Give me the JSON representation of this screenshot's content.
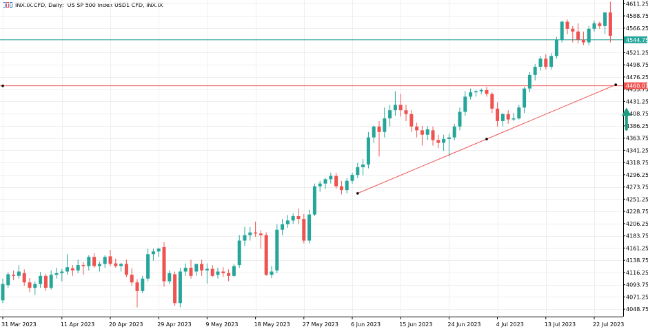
{
  "header": {
    "symbol": "INX.IX.CFD, Daily:",
    "description": "US SP 500 Index USD1 CFD, INX.IX"
  },
  "colors": {
    "bull": "#26a69a",
    "bear": "#ef5350",
    "grid": "#eeeeee",
    "axis": "#000000",
    "level_teal": "#26a69a",
    "level_red": "#ef5350",
    "trendline": "#ef5350",
    "arrow": "#1e9e80"
  },
  "chart_data": {
    "type": "candlestick",
    "timeframe": "Daily",
    "ylim": [
      4035,
      4618
    ],
    "y_ticks": [
      "4611.25",
      "4588.75",
      "4566.25",
      "4544.75",
      "4521.25",
      "4498.75",
      "4476.25",
      "4453.75",
      "4431.25",
      "4408.75",
      "4386.25",
      "4363.75",
      "4341.25",
      "4318.75",
      "4296.25",
      "4273.75",
      "4251.25",
      "4228.75",
      "4206.25",
      "4183.75",
      "4161.25",
      "4138.75",
      "4116.25",
      "4093.75",
      "4071.25",
      "4048.75"
    ],
    "x_ticks": [
      "31 Mar 2023",
      "11 Apr 2023",
      "20 Apr 2023",
      "29 Apr 2023",
      "9 May 2023",
      "18 May 2023",
      "27 May 2023",
      "6 Jun 2023",
      "15 Jun 2023",
      "24 Jun 2023",
      "4 Jul 2023",
      "13 Jul 2023",
      "22 Jul 2023"
    ],
    "x_tick_bar_index": [
      0,
      11,
      20,
      29,
      38,
      47,
      56,
      65,
      74,
      83,
      92,
      101,
      110
    ],
    "candles": [
      [
        4065,
        4105,
        4060,
        4095
      ],
      [
        4093,
        4117,
        4088,
        4113
      ],
      [
        4112,
        4120,
        4102,
        4110
      ],
      [
        4110,
        4130,
        4105,
        4118
      ],
      [
        4115,
        4122,
        4092,
        4098
      ],
      [
        4098,
        4106,
        4080,
        4088
      ],
      [
        4088,
        4100,
        4075,
        4095
      ],
      [
        4095,
        4117,
        4088,
        4110
      ],
      [
        4110,
        4114,
        4082,
        4088
      ],
      [
        4088,
        4120,
        4085,
        4112
      ],
      [
        4112,
        4125,
        4105,
        4115
      ],
      [
        4115,
        4123,
        4100,
        4118
      ],
      [
        4118,
        4150,
        4112,
        4126
      ],
      [
        4124,
        4130,
        4110,
        4120
      ],
      [
        4120,
        4140,
        4115,
        4130
      ],
      [
        4130,
        4135,
        4112,
        4128
      ],
      [
        4128,
        4148,
        4120,
        4145
      ],
      [
        4145,
        4152,
        4125,
        4128
      ],
      [
        4128,
        4136,
        4118,
        4132
      ],
      [
        4132,
        4148,
        4125,
        4145
      ],
      [
        4146,
        4158,
        4128,
        4132
      ],
      [
        4133,
        4142,
        4125,
        4128
      ],
      [
        4128,
        4134,
        4118,
        4132
      ],
      [
        4132,
        4140,
        4108,
        4112
      ],
      [
        4112,
        4124,
        4092,
        4098
      ],
      [
        4098,
        4104,
        4052,
        4082
      ],
      [
        4082,
        4110,
        4078,
        4105
      ],
      [
        4105,
        4160,
        4100,
        4150
      ],
      [
        4150,
        4160,
        4138,
        4155
      ],
      [
        4155,
        4162,
        4145,
        4160
      ],
      [
        4163,
        4172,
        4090,
        4100
      ],
      [
        4100,
        4120,
        4095,
        4115
      ],
      [
        4113,
        4118,
        4055,
        4060
      ],
      [
        4060,
        4125,
        4052,
        4118
      ],
      [
        4118,
        4133,
        4110,
        4125
      ],
      [
        4125,
        4140,
        4105,
        4110
      ],
      [
        4118,
        4130,
        4110,
        4132
      ],
      [
        4132,
        4140,
        4110,
        4120
      ],
      [
        4120,
        4133,
        4096,
        4123
      ],
      [
        4123,
        4130,
        4108,
        4110
      ],
      [
        4112,
        4125,
        4105,
        4118
      ],
      [
        4118,
        4126,
        4108,
        4115
      ],
      [
        4115,
        4122,
        4100,
        4110
      ],
      [
        4110,
        4132,
        4108,
        4128
      ],
      [
        4130,
        4185,
        4125,
        4175
      ],
      [
        4175,
        4200,
        4165,
        4185
      ],
      [
        4185,
        4200,
        4175,
        4190
      ],
      [
        4190,
        4210,
        4182,
        4188
      ],
      [
        4188,
        4194,
        4160,
        4185
      ],
      [
        4185,
        4190,
        4110,
        4112
      ],
      [
        4112,
        4128,
        4106,
        4118
      ],
      [
        4120,
        4205,
        4115,
        4195
      ],
      [
        4195,
        4215,
        4185,
        4205
      ],
      [
        4205,
        4222,
        4198,
        4212
      ],
      [
        4212,
        4225,
        4206,
        4220
      ],
      [
        4220,
        4234,
        4205,
        4215
      ],
      [
        4215,
        4224,
        4170,
        4175
      ],
      [
        4175,
        4232,
        4170,
        4223
      ],
      [
        4223,
        4280,
        4220,
        4275
      ],
      [
        4275,
        4285,
        4265,
        4280
      ],
      [
        4280,
        4290,
        4270,
        4288
      ],
      [
        4288,
        4300,
        4280,
        4294
      ],
      [
        4294,
        4300,
        4270,
        4275
      ],
      [
        4275,
        4285,
        4260,
        4268
      ],
      [
        4268,
        4290,
        4262,
        4285
      ],
      [
        4285,
        4300,
        4280,
        4296
      ],
      [
        4296,
        4318,
        4290,
        4310
      ],
      [
        4310,
        4325,
        4295,
        4315
      ],
      [
        4315,
        4375,
        4308,
        4365
      ],
      [
        4365,
        4387,
        4355,
        4385
      ],
      [
        4385,
        4395,
        4330,
        4375
      ],
      [
        4375,
        4420,
        4365,
        4400
      ],
      [
        4400,
        4425,
        4385,
        4415
      ],
      [
        4415,
        4450,
        4405,
        4425
      ],
      [
        4425,
        4445,
        4403,
        4415
      ],
      [
        4415,
        4425,
        4395,
        4408
      ],
      [
        4408,
        4415,
        4375,
        4385
      ],
      [
        4385,
        4392,
        4365,
        4378
      ],
      [
        4378,
        4386,
        4350,
        4370
      ],
      [
        4370,
        4386,
        4360,
        4380
      ],
      [
        4378,
        4385,
        4350,
        4360
      ],
      [
        4360,
        4370,
        4345,
        4355
      ],
      [
        4355,
        4370,
        4340,
        4362
      ],
      [
        4362,
        4372,
        4330,
        4365
      ],
      [
        4365,
        4390,
        4360,
        4385
      ],
      [
        4385,
        4420,
        4378,
        4412
      ],
      [
        4412,
        4450,
        4405,
        4440
      ],
      [
        4440,
        4455,
        4435,
        4448
      ],
      [
        4448,
        4452,
        4440,
        4450
      ],
      [
        4450,
        4455,
        4445,
        4452
      ],
      [
        4452,
        4458,
        4440,
        4445
      ],
      [
        4445,
        4448,
        4410,
        4418
      ],
      [
        4418,
        4430,
        4385,
        4395
      ],
      [
        4395,
        4410,
        4385,
        4408
      ],
      [
        4408,
        4415,
        4390,
        4398
      ],
      [
        4398,
        4410,
        4395,
        4400
      ],
      [
        4400,
        4425,
        4398,
        4420
      ],
      [
        4420,
        4458,
        4410,
        4455
      ],
      [
        4455,
        4485,
        4448,
        4480
      ],
      [
        4480,
        4500,
        4470,
        4495
      ],
      [
        4495,
        4515,
        4488,
        4510
      ],
      [
        4510,
        4518,
        4490,
        4495
      ],
      [
        4495,
        4520,
        4490,
        4515
      ],
      [
        4515,
        4550,
        4510,
        4545
      ],
      [
        4545,
        4580,
        4540,
        4578
      ],
      [
        4578,
        4582,
        4555,
        4565
      ],
      [
        4565,
        4570,
        4540,
        4560
      ],
      [
        4560,
        4575,
        4538,
        4545
      ],
      [
        4545,
        4560,
        4535,
        4540
      ],
      [
        4540,
        4570,
        4535,
        4565
      ],
      [
        4565,
        4580,
        4560,
        4575
      ],
      [
        4575,
        4578,
        4565,
        4570
      ],
      [
        4570,
        4596,
        4555,
        4595
      ],
      [
        4595,
        4615,
        4540,
        4552
      ]
    ],
    "levels": [
      {
        "price": 4544.75,
        "label": "4544.75",
        "color": "#26a69a"
      },
      {
        "price": 4460.01,
        "label": "4460.01",
        "color": "#ef5350"
      }
    ],
    "trendline": {
      "from": {
        "bar": 66,
        "price": 4262
      },
      "mid": {
        "bar": 90,
        "price": 4362
      },
      "to": {
        "bar": 114,
        "price": 4462
      }
    },
    "annotations": [
      {
        "type": "arrow-up",
        "bar": 116,
        "price": 4400
      }
    ],
    "grid": true
  }
}
